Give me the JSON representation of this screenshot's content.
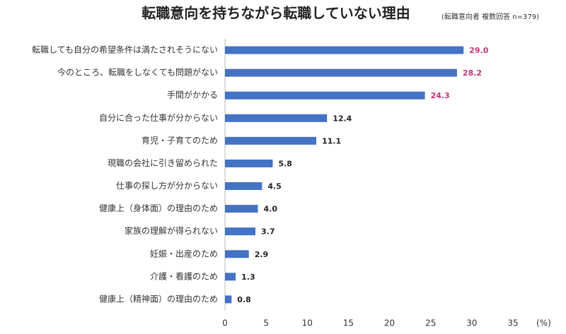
{
  "chart_data": {
    "type": "barh",
    "title": "転職意向を持ちながら転職していない理由",
    "subtitle": "(転職意向者 複数回答 n=379)",
    "x_unit_label": "(%)",
    "categories": [
      "転職しても自分の希望条件は満たされそうにない",
      "今のところ、転職をしなくても問題がない",
      "手間がかかる",
      "自分に合った仕事が分からない",
      "育児・子育てのため",
      "現職の会社に引き留められた",
      "仕事の探し方が分からない",
      "健康上（身体面）の理由のため",
      "家族の理解が得られない",
      "妊娠・出産のため",
      "介護・看護のため",
      "健康上（精神面）の理由のため"
    ],
    "values": [
      29.0,
      28.2,
      24.3,
      12.4,
      11.1,
      5.8,
      4.5,
      4.0,
      3.7,
      2.9,
      1.3,
      0.8
    ],
    "value_labels": [
      "29.0",
      "28.2",
      "24.3",
      "12.4",
      "11.1",
      "5.8",
      "4.5",
      "4.0",
      "3.7",
      "2.9",
      "1.3",
      "0.8"
    ],
    "value_label_colors": [
      "#c8327a",
      "#c8327a",
      "#c8327a",
      "#222222",
      "#222222",
      "#222222",
      "#222222",
      "#222222",
      "#222222",
      "#222222",
      "#222222",
      "#222222"
    ],
    "color": "#4472c4",
    "xlim": [
      0,
      35
    ],
    "xticks": [
      0,
      5,
      10,
      15,
      20,
      25,
      30,
      35
    ],
    "grid": false
  }
}
